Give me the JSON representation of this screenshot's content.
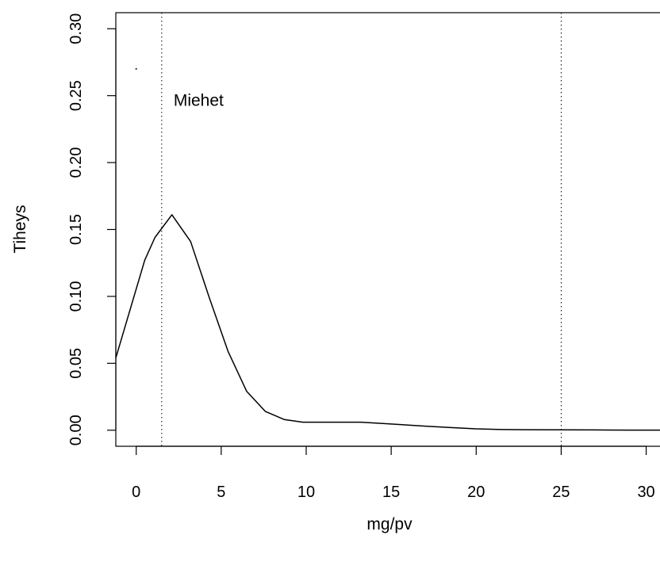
{
  "chart_data": {
    "type": "line",
    "title": "",
    "xlabel": "mg/pv",
    "ylabel": "Tiheys",
    "xlim": [
      -1.2,
      31
    ],
    "ylim": [
      -0.012,
      0.312
    ],
    "x_ticks": [
      0,
      5,
      10,
      15,
      20,
      25,
      30
    ],
    "y_ticks": [
      0.0,
      0.05,
      0.1,
      0.15,
      0.2,
      0.25,
      0.3
    ],
    "x_tick_labels": [
      "0",
      "5",
      "10",
      "15",
      "20",
      "25",
      "30"
    ],
    "y_tick_labels": [
      "0.00",
      "0.05",
      "0.10",
      "0.15",
      "0.20",
      "0.25",
      "0.30"
    ],
    "annotation": {
      "text": "Miehet",
      "x": 2.2,
      "y": 0.247
    },
    "vlines": [
      1.5,
      25
    ],
    "stray_point": {
      "x": 0,
      "y": 0.27
    },
    "series": [
      {
        "color": "#000000",
        "x": [
          -1.2,
          0.5,
          1.1,
          2.1,
          3.2,
          4.3,
          5.4,
          6.5,
          7.6,
          8.7,
          9.8,
          11,
          12,
          13.2,
          14.5,
          15.8,
          17,
          18.5,
          20,
          21.5,
          23,
          25,
          27,
          29,
          31
        ],
        "y": [
          0.054,
          0.127,
          0.144,
          0.161,
          0.141,
          0.099,
          0.059,
          0.029,
          0.014,
          0.008,
          0.006,
          0.006,
          0.006,
          0.006,
          0.005,
          0.004,
          0.003,
          0.002,
          0.001,
          0.0005,
          0.0004,
          0.0003,
          0.0002,
          0.0001,
          0.0001
        ]
      }
    ]
  }
}
